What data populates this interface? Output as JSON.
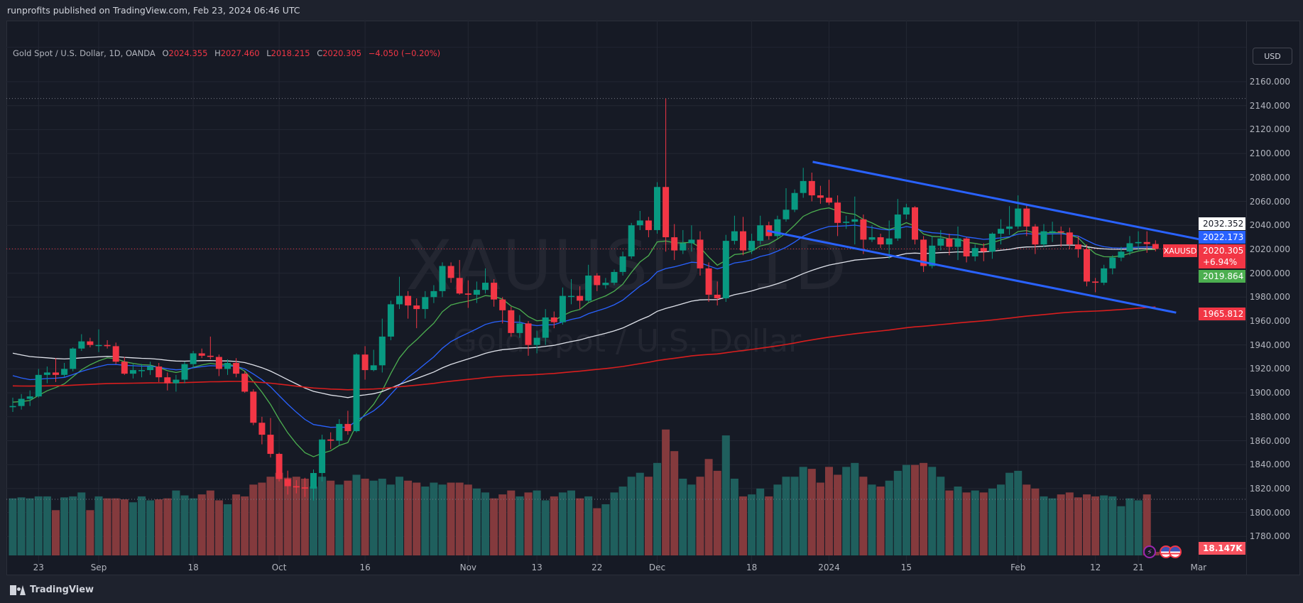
{
  "header": {
    "published": "runprofits published on TradingView.com, Feb 23, 2024 06:46 UTC"
  },
  "legend": {
    "symbol": "Gold Spot / U.S. Dollar, 1D, OANDA",
    "o_label": "O",
    "o": "2024.355",
    "h_label": "H",
    "h": "2027.460",
    "l_label": "L",
    "l": "2018.215",
    "c_label": "C",
    "c": "2020.305",
    "change": "−4.050 (−0.20%)"
  },
  "watermark": {
    "line1": "XAUUSD, 1D",
    "line2": "Gold Spot / U.S. Dollar"
  },
  "currency_button": "USD",
  "symbol_tag": "XAUUSD",
  "tags": {
    "ma50": "2032.352",
    "ma20": "2022.173",
    "last": "2020.305",
    "last_change": "+6.94%",
    "ma9": "2019.864",
    "ma200": {
      "text": "1965.812",
      "value": 1965.812
    },
    "volume": "18.147K"
  },
  "footer": {
    "brand": "TradingView"
  },
  "colors": {
    "up": "#089981",
    "down": "#f23645",
    "vol_up": "#1f5f5d",
    "vol_down": "#843a3d",
    "trend": "#2962ff",
    "grid": "#232733"
  },
  "chart_data": {
    "type": "candlestick",
    "title": "Gold Spot / U.S. Dollar, 1D, OANDA",
    "ylim": [
      1770,
      2170
    ],
    "price_ticks": [
      2160,
      2140,
      2120,
      2100,
      2080,
      2060,
      2040,
      2020,
      2000,
      1980,
      1960,
      1940,
      1920,
      1900,
      1880,
      1860,
      1840,
      1820,
      1800,
      1780
    ],
    "price_tick_labels": [
      "2160.000",
      "2140.000",
      "2120.000",
      "2100.000",
      "2080.000",
      "2060.000",
      "2040.000",
      "2020.000",
      "2000.000",
      "1980.000",
      "1960.000",
      "1940.000",
      "1920.000",
      "1900.000",
      "1880.000",
      "1860.000",
      "1840.000",
      "1820.000",
      "1800.000",
      "1780.000"
    ],
    "time_ticks": [
      {
        "label": "23",
        "bar": 3
      },
      {
        "label": "Sep",
        "bar": 10
      },
      {
        "label": "18",
        "bar": 21
      },
      {
        "label": "Oct",
        "bar": 31
      },
      {
        "label": "16",
        "bar": 41
      },
      {
        "label": "Nov",
        "bar": 53
      },
      {
        "label": "13",
        "bar": 61
      },
      {
        "label": "22",
        "bar": 68
      },
      {
        "label": "Dec",
        "bar": 75
      },
      {
        "label": "18",
        "bar": 86
      },
      {
        "label": "2024",
        "bar": 95
      },
      {
        "label": "15",
        "bar": 104
      },
      {
        "label": "Feb",
        "bar": 117
      },
      {
        "label": "12",
        "bar": 126
      },
      {
        "label": "21",
        "bar": 131
      },
      {
        "label": "Mar",
        "bar": 138
      }
    ],
    "high_line": 2146,
    "volume_avg_line": 285,
    "last_price": 2020.305,
    "moving_averages": [
      {
        "name": "MA 9",
        "length": 9,
        "seed": 1893,
        "color": "#4caf50"
      },
      {
        "name": "MA 20",
        "length": 20,
        "seed": 1917,
        "color": "#2962ff"
      },
      {
        "name": "MA 50",
        "length": 50,
        "seed": 1935,
        "color": "#e0e3eb"
      },
      {
        "name": "MA 200",
        "length": 200,
        "seed": 1906,
        "color": "#d81e1e"
      }
    ],
    "trendlines": [
      {
        "name": "channel-upper",
        "from": [
          93.1,
          2093
        ],
        "to": [
          140.2,
          2025.3
        ]
      },
      {
        "name": "channel-lower",
        "from": [
          87.8,
          2035.4
        ],
        "to": [
          135.4,
          1967
        ]
      }
    ],
    "ohlc": [
      [
        1888,
        1896,
        1884,
        1889
      ],
      [
        1889,
        1899,
        1886,
        1895
      ],
      [
        1895,
        1902,
        1889,
        1897
      ],
      [
        1897,
        1920,
        1896,
        1915
      ],
      [
        1915,
        1922,
        1908,
        1917
      ],
      [
        1917,
        1929,
        1909,
        1915
      ],
      [
        1915,
        1925,
        1913,
        1920
      ],
      [
        1920,
        1938,
        1918,
        1937
      ],
      [
        1937,
        1949,
        1935,
        1943
      ],
      [
        1943,
        1946,
        1938,
        1940
      ],
      [
        1940,
        1953,
        1934,
        1940
      ],
      [
        1940,
        1944,
        1937,
        1939
      ],
      [
        1939,
        1942,
        1924,
        1926
      ],
      [
        1926,
        1930,
        1915,
        1916
      ],
      [
        1916,
        1924,
        1912,
        1919
      ],
      [
        1919,
        1924,
        1913,
        1919
      ],
      [
        1919,
        1926,
        1915,
        1922
      ],
      [
        1922,
        1925,
        1909,
        1913
      ],
      [
        1913,
        1917,
        1902,
        1908
      ],
      [
        1908,
        1915,
        1901,
        1911
      ],
      [
        1911,
        1926,
        1908,
        1924
      ],
      [
        1924,
        1935,
        1921,
        1933
      ],
      [
        1933,
        1937,
        1929,
        1931
      ],
      [
        1931,
        1947,
        1928,
        1930
      ],
      [
        1930,
        1932,
        1914,
        1920
      ],
      [
        1920,
        1928,
        1915,
        1925
      ],
      [
        1925,
        1929,
        1913,
        1916
      ],
      [
        1916,
        1918,
        1900,
        1901
      ],
      [
        1901,
        1903,
        1873,
        1875
      ],
      [
        1875,
        1880,
        1857,
        1865
      ],
      [
        1865,
        1879,
        1846,
        1849
      ],
      [
        1849,
        1850,
        1826,
        1828
      ],
      [
        1828,
        1835,
        1815,
        1822
      ],
      [
        1822,
        1827,
        1816,
        1821
      ],
      [
        1821,
        1829,
        1813,
        1820
      ],
      [
        1820,
        1836,
        1810,
        1833
      ],
      [
        1833,
        1865,
        1826,
        1861
      ],
      [
        1861,
        1867,
        1853,
        1860
      ],
      [
        1860,
        1878,
        1856,
        1874
      ],
      [
        1874,
        1885,
        1865,
        1868
      ],
      [
        1868,
        1933,
        1867,
        1932
      ],
      [
        1932,
        1939,
        1911,
        1919
      ],
      [
        1919,
        1936,
        1918,
        1923
      ],
      [
        1923,
        1962,
        1917,
        1947
      ],
      [
        1947,
        1977,
        1944,
        1974
      ],
      [
        1974,
        1997,
        1970,
        1981
      ],
      [
        1981,
        1985,
        1962,
        1973
      ],
      [
        1973,
        1979,
        1954,
        1970
      ],
      [
        1970,
        1985,
        1962,
        1980
      ],
      [
        1980,
        1990,
        1975,
        1985
      ],
      [
        1985,
        2009,
        1980,
        2006
      ],
      [
        2006,
        2009,
        1992,
        1996
      ],
      [
        1996,
        2011,
        1982,
        1983
      ],
      [
        1983,
        1994,
        1971,
        1982
      ],
      [
        1982,
        1993,
        1975,
        1986
      ],
      [
        1986,
        2004,
        1983,
        1992
      ],
      [
        1992,
        1995,
        1972,
        1978
      ],
      [
        1978,
        1980,
        1958,
        1969
      ],
      [
        1969,
        1972,
        1947,
        1950
      ],
      [
        1950,
        1965,
        1946,
        1958
      ],
      [
        1958,
        1960,
        1931,
        1940
      ],
      [
        1940,
        1952,
        1933,
        1946
      ],
      [
        1946,
        1970,
        1940,
        1963
      ],
      [
        1963,
        1968,
        1954,
        1959
      ],
      [
        1959,
        1988,
        1957,
        1981
      ],
      [
        1981,
        1995,
        1974,
        1981
      ],
      [
        1981,
        1989,
        1970,
        1977
      ],
      [
        1977,
        2007,
        1976,
        1998
      ],
      [
        1998,
        2000,
        1985,
        1990
      ],
      [
        1990,
        1996,
        1987,
        1992
      ],
      [
        1992,
        2003,
        1990,
        2001
      ],
      [
        2001,
        2018,
        1998,
        2014
      ],
      [
        2014,
        2042,
        2012,
        2040
      ],
      [
        2040,
        2052,
        2036,
        2044
      ],
      [
        2044,
        2047,
        2030,
        2036
      ],
      [
        2036,
        2076,
        2033,
        2072
      ],
      [
        2072,
        2146,
        2018,
        2030
      ],
      [
        2030,
        2041,
        2011,
        2019
      ],
      [
        2019,
        2036,
        2016,
        2025
      ],
      [
        2025,
        2040,
        2018,
        2028
      ],
      [
        2028,
        2035,
        1998,
        2004
      ],
      [
        2004,
        2009,
        1976,
        1982
      ],
      [
        1982,
        1993,
        1973,
        1979
      ],
      [
        1979,
        2032,
        1976,
        2027
      ],
      [
        2027,
        2048,
        2024,
        2035
      ],
      [
        2035,
        2047,
        2015,
        2019
      ],
      [
        2019,
        2033,
        2016,
        2027
      ],
      [
        2027,
        2048,
        2024,
        2040
      ],
      [
        2040,
        2043,
        2028,
        2031
      ],
      [
        2031,
        2048,
        2029,
        2045
      ],
      [
        2045,
        2071,
        2043,
        2053
      ],
      [
        2053,
        2070,
        2051,
        2067
      ],
      [
        2067,
        2088,
        2063,
        2077
      ],
      [
        2077,
        2084,
        2060,
        2065
      ],
      [
        2065,
        2073,
        2058,
        2063
      ],
      [
        2063,
        2078,
        2057,
        2059
      ],
      [
        2059,
        2065,
        2031,
        2042
      ],
      [
        2042,
        2048,
        2037,
        2043
      ],
      [
        2043,
        2064,
        2024,
        2045
      ],
      [
        2045,
        2049,
        2016,
        2028
      ],
      [
        2028,
        2040,
        2026,
        2030
      ],
      [
        2030,
        2033,
        2021,
        2024
      ],
      [
        2024,
        2044,
        2012,
        2029
      ],
      [
        2029,
        2062,
        2027,
        2049
      ],
      [
        2049,
        2058,
        2045,
        2055
      ],
      [
        2055,
        2056,
        2024,
        2028
      ],
      [
        2028,
        2031,
        2001,
        2006
      ],
      [
        2006,
        2031,
        2004,
        2023
      ],
      [
        2023,
        2036,
        2019,
        2029
      ],
      [
        2029,
        2033,
        2015,
        2022
      ],
      [
        2022,
        2039,
        2011,
        2029
      ],
      [
        2029,
        2030,
        2009,
        2014
      ],
      [
        2014,
        2024,
        2010,
        2021
      ],
      [
        2021,
        2025,
        2010,
        2018
      ],
      [
        2018,
        2034,
        2012,
        2033
      ],
      [
        2033,
        2045,
        2024,
        2037
      ],
      [
        2037,
        2056,
        2032,
        2039
      ],
      [
        2039,
        2065,
        2037,
        2054
      ],
      [
        2054,
        2058,
        2031,
        2039
      ],
      [
        2039,
        2041,
        2016,
        2024
      ],
      [
        2024,
        2041,
        2022,
        2035
      ],
      [
        2035,
        2043,
        2026,
        2035
      ],
      [
        2035,
        2039,
        2022,
        2034
      ],
      [
        2034,
        2038,
        2020,
        2024
      ],
      [
        2024,
        2031,
        2013,
        2020
      ],
      [
        2020,
        2024,
        1989,
        1993
      ],
      [
        1993,
        1996,
        1984,
        1992
      ],
      [
        1992,
        2007,
        1990,
        2004
      ],
      [
        2004,
        2015,
        1999,
        2013
      ],
      [
        2013,
        2022,
        2010,
        2018
      ],
      [
        2018,
        2031,
        2015,
        2025
      ],
      [
        2025,
        2035,
        2019,
        2026
      ],
      [
        2026,
        2035,
        2017,
        2024.355
      ],
      [
        2024.355,
        2027.46,
        2018.215,
        2020.305
      ]
    ],
    "volume_k": [
      290,
      295,
      290,
      300,
      300,
      230,
      295,
      300,
      320,
      230,
      300,
      290,
      290,
      285,
      270,
      300,
      280,
      285,
      290,
      330,
      305,
      290,
      310,
      330,
      280,
      260,
      310,
      300,
      360,
      370,
      400,
      420,
      395,
      400,
      390,
      350,
      400,
      380,
      360,
      380,
      410,
      390,
      380,
      390,
      360,
      400,
      380,
      370,
      350,
      370,
      360,
      370,
      370,
      360,
      340,
      320,
      290,
      310,
      330,
      300,
      320,
      330,
      280,
      300,
      320,
      330,
      290,
      300,
      240,
      260,
      320,
      350,
      400,
      420,
      400,
      470,
      640,
      530,
      390,
      360,
      400,
      490,
      430,
      610,
      390,
      300,
      310,
      340,
      300,
      360,
      400,
      400,
      450,
      440,
      370,
      450,
      410,
      450,
      470,
      400,
      360,
      350,
      380,
      430,
      460,
      460,
      470,
      450,
      400,
      330,
      350,
      320,
      330,
      320,
      340,
      360,
      420,
      430,
      360,
      340,
      300,
      290,
      310,
      320,
      295,
      310,
      300,
      305,
      300,
      250,
      290,
      280,
      310,
      18.147
    ]
  }
}
